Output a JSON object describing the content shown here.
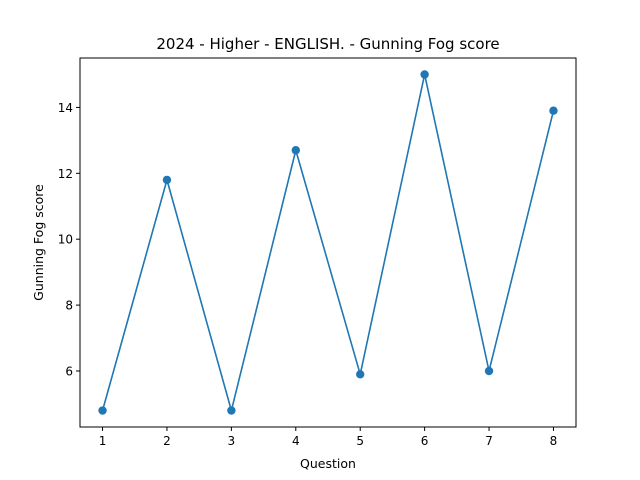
{
  "chart_data": {
    "type": "line",
    "title": "2024 - Higher - ENGLISH. - Gunning Fog score",
    "xlabel": "Question",
    "ylabel": "Gunning Fog score",
    "x": [
      1,
      2,
      3,
      4,
      5,
      6,
      7,
      8
    ],
    "series": [
      {
        "values": [
          4.8,
          11.8,
          4.8,
          12.7,
          5.9,
          15.0,
          6.0,
          13.9
        ]
      }
    ],
    "xlim": [
      0.65,
      8.35
    ],
    "ylim": [
      4.3,
      15.5
    ],
    "xticks": [
      1,
      2,
      3,
      4,
      5,
      6,
      7,
      8
    ],
    "yticks": [
      6,
      8,
      10,
      12,
      14
    ],
    "color": "#1f77b4",
    "grid": false,
    "legend": false
  }
}
